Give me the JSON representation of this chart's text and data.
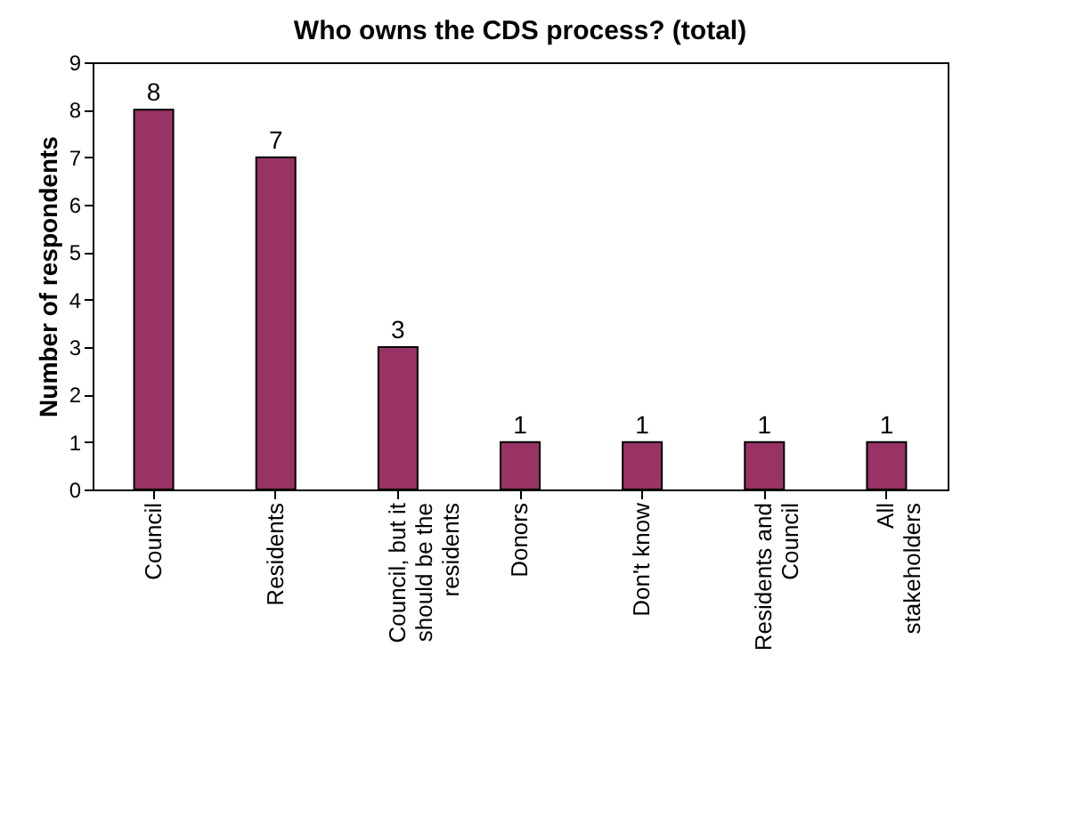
{
  "chart_data": {
    "type": "bar",
    "title": "Who owns the CDS process? (total)",
    "ylabel": "Number of respondents",
    "categories": [
      "Council",
      "Residents",
      "Council, but it should be the residents",
      "Donors",
      "Don't know",
      "Residents and Council",
      "All stakeholders"
    ],
    "values": [
      8,
      7,
      3,
      1,
      1,
      1,
      1
    ],
    "color": "#993366",
    "ylim": [
      0,
      9
    ],
    "yticks": [
      0,
      1,
      2,
      3,
      4,
      5,
      6,
      7,
      8,
      9
    ],
    "grid": false,
    "data_labels": true
  }
}
